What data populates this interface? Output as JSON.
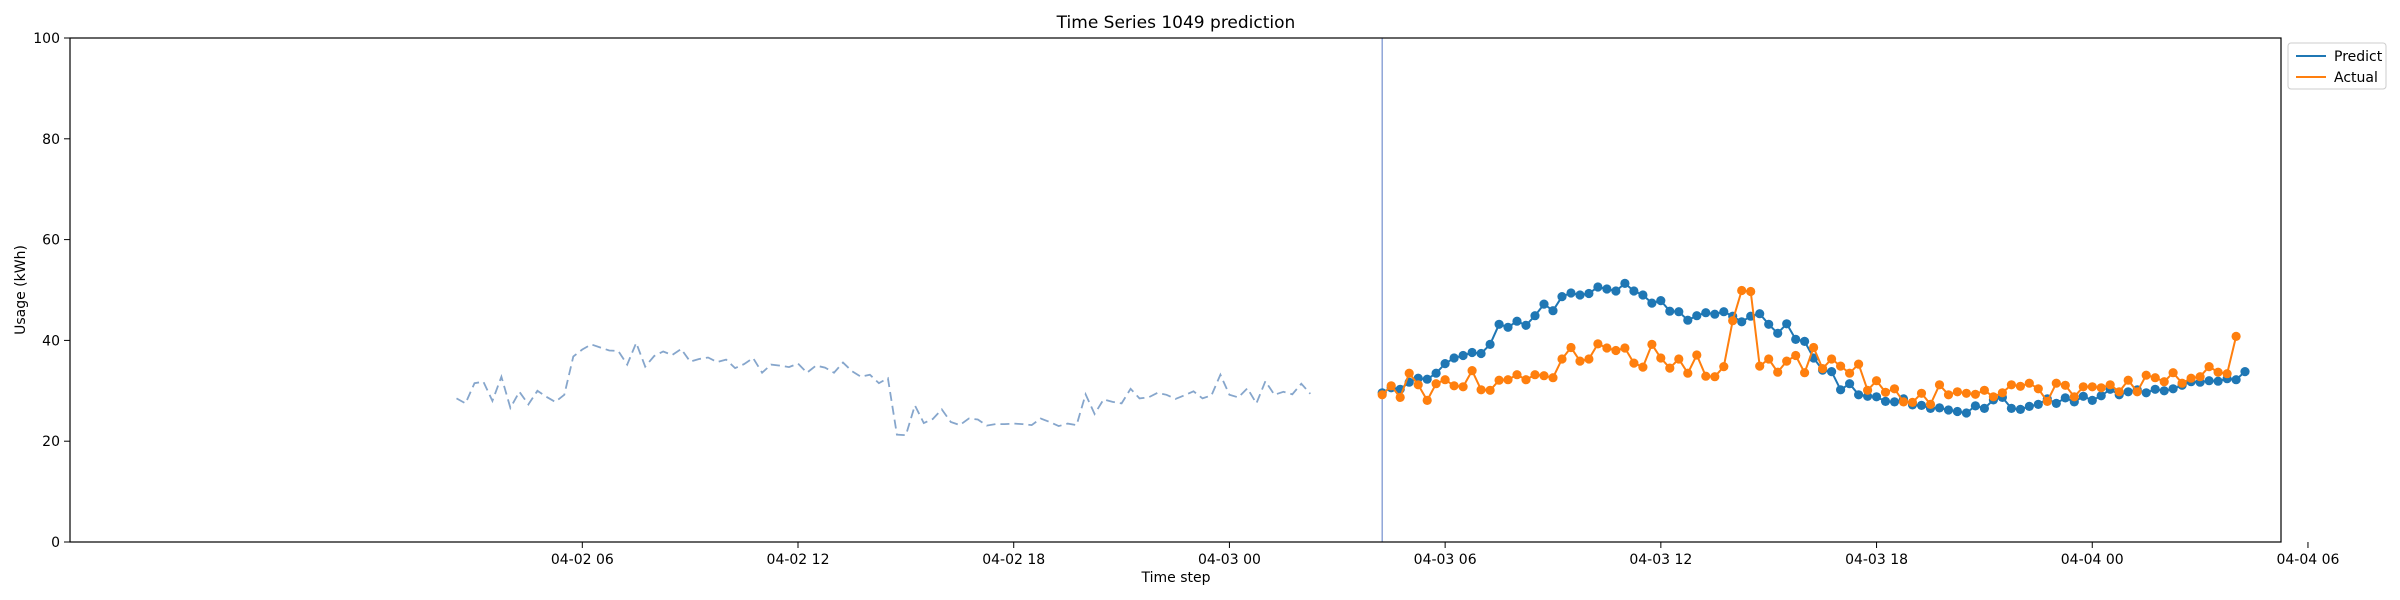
{
  "chart_data": {
    "type": "line",
    "title": "Time Series 1049 prediction",
    "xlabel": "Time step",
    "ylabel": "Usage (kWh)",
    "ylim": [
      0,
      100
    ],
    "yticks": [
      0,
      20,
      40,
      60,
      80,
      100
    ],
    "xlim_hours": [
      -8.25,
      53.25
    ],
    "xticks": [
      {
        "hour": 6,
        "label": "04-02 06"
      },
      {
        "hour": 12,
        "label": "04-02 12"
      },
      {
        "hour": 18,
        "label": "04-02 18"
      },
      {
        "hour": 24,
        "label": "04-03 00"
      },
      {
        "hour": 30,
        "label": "04-03 06"
      },
      {
        "hour": 36,
        "label": "04-03 12"
      },
      {
        "hour": 42,
        "label": "04-03 18"
      },
      {
        "hour": 48,
        "label": "04-04 00"
      },
      {
        "hour": 54,
        "label": "04-04 06"
      }
    ],
    "forecast_start_hour": 28.25,
    "history": {
      "start_hour": 2.5,
      "step_hours": 0.25,
      "values": [
        28.5,
        27.5,
        31.5,
        31.8,
        28.0,
        32.8,
        26.6,
        29.8,
        27.3,
        30.0,
        28.8,
        27.8,
        29.2,
        36.8,
        38.2,
        39.2,
        38.6,
        38.0,
        37.9,
        35.2,
        39.5,
        34.8,
        36.9,
        37.8,
        37.1,
        38.3,
        35.8,
        36.3,
        36.6,
        35.7,
        36.2,
        34.5,
        35.3,
        36.5,
        33.6,
        35.2,
        35.0,
        34.7,
        35.4,
        33.6,
        35.0,
        34.6,
        33.6,
        35.6,
        33.9,
        32.8,
        33.2,
        31.5,
        32.5,
        21.3,
        21.2,
        27.1,
        23.6,
        24.4,
        26.3,
        23.8,
        23.2,
        24.5,
        24.3,
        23.1,
        23.4,
        23.4,
        23.5,
        23.4,
        23.2,
        24.5,
        23.8,
        23.0,
        23.5,
        23.2,
        29.3,
        25.4,
        28.3,
        27.8,
        27.5,
        30.4,
        28.5,
        28.7,
        29.6,
        29.2,
        28.4,
        29.1,
        29.9,
        28.5,
        29.1,
        33.2,
        29.2,
        28.7,
        30.5,
        27.5,
        31.9,
        29.2,
        29.8,
        29.3,
        31.4,
        29.4
      ]
    },
    "series": [
      {
        "name": "Predict",
        "color": "#1f77b4",
        "start_hour": 28.25,
        "step_hours": 0.25,
        "values": [
          29.6,
          30.6,
          30.3,
          31.7,
          32.5,
          32.3,
          33.5,
          35.4,
          36.5,
          37.0,
          37.6,
          37.4,
          39.2,
          43.2,
          42.6,
          43.8,
          43.0,
          44.9,
          47.2,
          45.9,
          48.7,
          49.4,
          49.0,
          49.3,
          50.6,
          50.2,
          49.8,
          51.3,
          49.8,
          49.0,
          47.4,
          47.9,
          45.8,
          45.7,
          44.0,
          44.9,
          45.5,
          45.2,
          45.7,
          44.8,
          43.7,
          44.8,
          45.3,
          43.2,
          41.4,
          43.3,
          40.2,
          39.8,
          36.5,
          34.1,
          33.8,
          30.2,
          31.4,
          29.2,
          28.9,
          28.8,
          27.9,
          27.8,
          28.4,
          27.2,
          27.1,
          26.5,
          26.6,
          26.2,
          25.9,
          25.6,
          27.0,
          26.5,
          28.2,
          28.7,
          26.5,
          26.3,
          26.9,
          27.3,
          28.4,
          27.5,
          28.6,
          27.8,
          28.9,
          28.1,
          29.0,
          30.3,
          29.2,
          29.8,
          30.2,
          29.6,
          30.3,
          30.0,
          30.4,
          31.1,
          31.8,
          31.7,
          32.0,
          31.9,
          32.4,
          32.2,
          33.8
        ]
      },
      {
        "name": "Actual",
        "color": "#ff7f0e",
        "start_hour": 28.25,
        "step_hours": 0.25,
        "values": [
          29.2,
          31.0,
          28.7,
          33.5,
          31.2,
          28.1,
          31.4,
          32.2,
          31.0,
          30.8,
          34.0,
          30.2,
          30.1,
          32.1,
          32.2,
          33.2,
          32.2,
          33.2,
          33.0,
          32.6,
          36.3,
          38.6,
          35.9,
          36.3,
          39.3,
          38.5,
          38.0,
          38.5,
          35.5,
          34.7,
          39.2,
          36.5,
          34.5,
          36.3,
          33.5,
          37.1,
          32.9,
          32.8,
          34.8,
          43.9,
          49.9,
          49.7,
          34.9,
          36.3,
          33.7,
          35.9,
          37.0,
          33.6,
          38.6,
          34.4,
          36.3,
          34.9,
          33.5,
          35.3,
          30.1,
          32.0,
          29.7,
          30.4,
          27.8,
          27.7,
          29.5,
          27.3,
          31.2,
          29.2,
          29.8,
          29.5,
          29.3,
          30.1,
          28.8,
          29.6,
          31.2,
          30.9,
          31.5,
          30.4,
          27.9,
          31.5,
          31.1,
          28.8,
          30.8,
          30.8,
          30.6,
          31.2,
          29.8,
          32.1,
          29.8,
          33.1,
          32.6,
          31.8,
          33.6,
          31.5,
          32.5,
          32.8,
          34.8,
          33.7,
          33.4,
          40.8
        ]
      }
    ],
    "history_color": "#86a6cc",
    "forecast_line_color": "#8fa5d8",
    "legend": {
      "position": "top-right outside"
    },
    "grid": false
  }
}
